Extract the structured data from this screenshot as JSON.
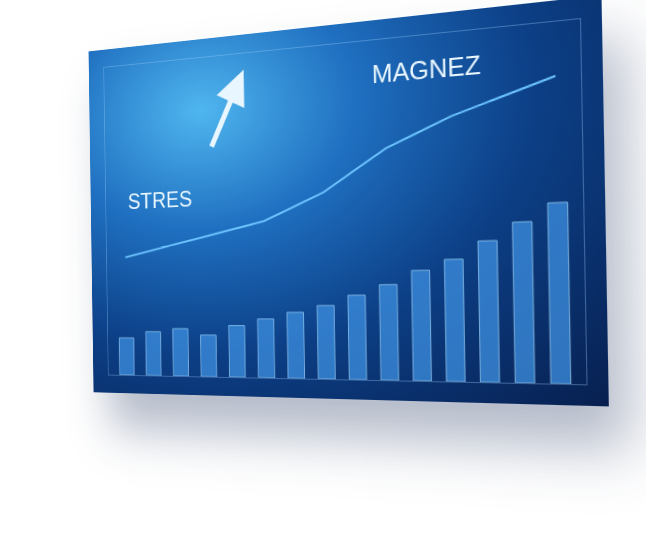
{
  "chart_data": {
    "type": "bar",
    "x": [
      1,
      2,
      3,
      4,
      5,
      6,
      7,
      8,
      9,
      10,
      11,
      12,
      13,
      14,
      15
    ],
    "xlim": [
      0.3,
      15.7
    ],
    "ylim": [
      0,
      100
    ],
    "tick_labels": false,
    "grid": false,
    "series": [
      {
        "type": "bar",
        "color": "#3d8fe0",
        "values": [
          12,
          14,
          15,
          13,
          16,
          18,
          20,
          22,
          25,
          28,
          32,
          35,
          40,
          45,
          50
        ]
      },
      {
        "type": "line",
        "color": "#6cc4ff",
        "values": [
          38,
          40,
          42,
          44,
          46,
          48,
          52,
          56,
          62,
          68,
          72,
          76,
          79,
          82,
          85
        ]
      }
    ],
    "annotations": [
      "STRES",
      "MAGNEZ"
    ]
  }
}
